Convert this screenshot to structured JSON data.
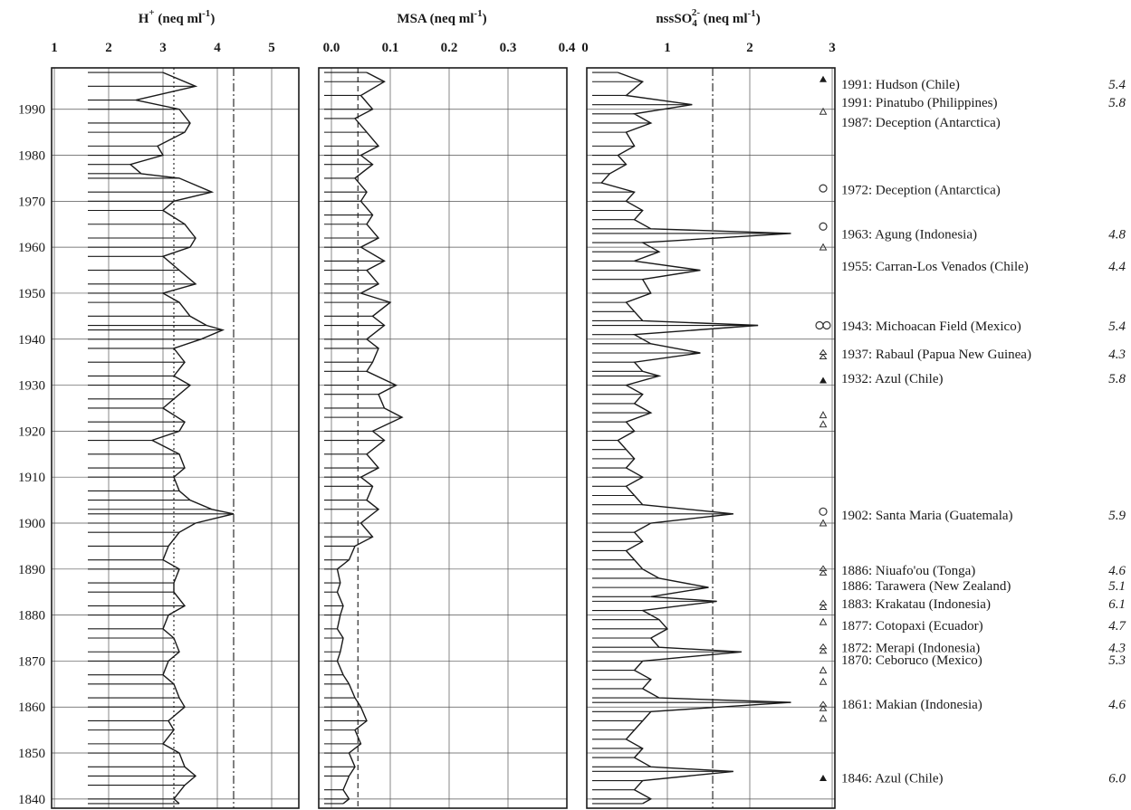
{
  "chart_data": [
    {
      "type": "line",
      "orientation": "vertical-profile",
      "title": "H⁺ (neq ml⁻¹)",
      "title_main": "H",
      "title_sup": "+",
      "title_unit": " (neq ml",
      "title_unit_sup": "-1",
      "title_close": ")",
      "xlim": [
        1,
        5.5
      ],
      "ylim": [
        1838,
        1999
      ],
      "xticks": [
        "1",
        "2",
        "3",
        "4",
        "5"
      ],
      "xtick_values": [
        1,
        2,
        3,
        4,
        5
      ],
      "yticks": [
        "1840",
        "1850",
        "1860",
        "1870",
        "1880",
        "1890",
        "1900",
        "1910",
        "1920",
        "1930",
        "1940",
        "1950",
        "1960",
        "1970",
        "1980",
        "1990"
      ],
      "ytick_values": [
        1840,
        1850,
        1860,
        1870,
        1880,
        1890,
        1900,
        1910,
        1920,
        1930,
        1940,
        1950,
        1960,
        1970,
        1980,
        1990
      ],
      "grid": true,
      "reference_lines": [
        {
          "x": 3.2,
          "style": "dotted"
        },
        {
          "x": 4.3,
          "style": "dash-dot"
        }
      ],
      "series": [
        {
          "y": [
            1998,
            1995,
            1992,
            1990,
            1987,
            1985,
            1982,
            1980,
            1978,
            1976,
            1975,
            1972,
            1970,
            1968,
            1965,
            1962,
            1960,
            1958,
            1955,
            1952,
            1950,
            1948,
            1945,
            1943,
            1942,
            1940,
            1938,
            1935,
            1932,
            1930,
            1927,
            1925,
            1922,
            1920,
            1918,
            1915,
            1912,
            1910,
            1907,
            1905,
            1903,
            1902,
            1900,
            1898,
            1895,
            1892,
            1890,
            1887,
            1885,
            1882,
            1880,
            1877,
            1875,
            1872,
            1870,
            1867,
            1865,
            1862,
            1860,
            1857,
            1855,
            1852,
            1850,
            1847,
            1845,
            1843,
            1840,
            1839
          ],
          "values": [
            3.0,
            3.6,
            2.5,
            3.3,
            3.5,
            3.4,
            2.9,
            3.0,
            2.4,
            2.6,
            3.3,
            3.9,
            3.2,
            3.0,
            3.4,
            3.6,
            3.5,
            3.0,
            3.3,
            3.6,
            3.0,
            3.3,
            3.5,
            3.8,
            4.1,
            3.7,
            3.2,
            3.4,
            3.2,
            3.5,
            3.2,
            3.0,
            3.4,
            3.3,
            2.8,
            3.3,
            3.4,
            3.2,
            3.3,
            3.5,
            3.9,
            4.3,
            3.6,
            3.3,
            3.1,
            3.0,
            3.3,
            3.2,
            3.2,
            3.4,
            3.1,
            3.0,
            3.2,
            3.3,
            3.1,
            3.0,
            3.2,
            3.3,
            3.4,
            3.1,
            3.2,
            3.0,
            3.3,
            3.4,
            3.6,
            3.4,
            3.2,
            3.3
          ]
        }
      ]
    },
    {
      "type": "line",
      "orientation": "vertical-profile",
      "title": "MSA (neq ml⁻¹)",
      "title_main": "MSA",
      "title_sup": "",
      "title_unit": " (neq ml",
      "title_unit_sup": "-1",
      "title_close": ")",
      "xlim": [
        0.0,
        0.4
      ],
      "ylim": [
        1838,
        1999
      ],
      "xticks": [
        "0.0",
        "0.1",
        "0.2",
        "0.3",
        "0.4"
      ],
      "xtick_values": [
        0.0,
        0.1,
        0.2,
        0.3,
        0.4
      ],
      "yticks": [],
      "grid": true,
      "reference_lines": [
        {
          "x": 0.045,
          "style": "dashed"
        }
      ],
      "series": [
        {
          "y": [
            1998,
            1996,
            1993,
            1990,
            1988,
            1985,
            1982,
            1980,
            1978,
            1975,
            1972,
            1970,
            1967,
            1965,
            1962,
            1960,
            1957,
            1955,
            1952,
            1950,
            1948,
            1945,
            1943,
            1940,
            1938,
            1935,
            1933,
            1930,
            1928,
            1925,
            1923,
            1920,
            1918,
            1915,
            1912,
            1910,
            1908,
            1905,
            1903,
            1900,
            1897,
            1895,
            1892,
            1890,
            1887,
            1885,
            1882,
            1880,
            1877,
            1875,
            1872,
            1870,
            1867,
            1865,
            1862,
            1860,
            1857,
            1855,
            1852,
            1850,
            1847,
            1845,
            1842,
            1840,
            1839
          ],
          "values": [
            0.06,
            0.09,
            0.05,
            0.07,
            0.04,
            0.06,
            0.08,
            0.05,
            0.07,
            0.04,
            0.06,
            0.05,
            0.07,
            0.06,
            0.08,
            0.05,
            0.09,
            0.06,
            0.08,
            0.05,
            0.1,
            0.07,
            0.09,
            0.06,
            0.08,
            0.07,
            0.06,
            0.11,
            0.08,
            0.09,
            0.12,
            0.07,
            0.09,
            0.06,
            0.08,
            0.05,
            0.07,
            0.06,
            0.08,
            0.05,
            0.07,
            0.04,
            0.03,
            0.01,
            0.015,
            0.01,
            0.02,
            0.015,
            0.01,
            0.02,
            0.015,
            0.01,
            0.02,
            0.03,
            0.04,
            0.05,
            0.06,
            0.04,
            0.05,
            0.03,
            0.04,
            0.03,
            0.02,
            0.03,
            0.02
          ]
        }
      ]
    },
    {
      "type": "line",
      "orientation": "vertical-profile",
      "title": "nssSO₄²⁻ (neq ml⁻¹)",
      "title_main": "nssSO",
      "title_sub": "4",
      "title_sup": "2-",
      "title_unit": " (neq ml",
      "title_unit_sup": "-1",
      "title_close": ")",
      "xlim": [
        0,
        3
      ],
      "ylim": [
        1838,
        1999
      ],
      "xticks": [
        "0",
        "1",
        "2",
        "3"
      ],
      "xtick_values": [
        0,
        1,
        2,
        3
      ],
      "yticks": [],
      "grid": true,
      "reference_lines": [
        {
          "x": 1.55,
          "style": "dash-dot"
        }
      ],
      "series": [
        {
          "y": [
            1998,
            1996,
            1993,
            1991,
            1989,
            1987,
            1985,
            1982,
            1980,
            1978,
            1976,
            1974,
            1972,
            1970,
            1968,
            1966,
            1964,
            1963,
            1961,
            1959,
            1957,
            1955,
            1953,
            1950,
            1948,
            1946,
            1944,
            1943,
            1941,
            1939,
            1937,
            1935,
            1933,
            1932,
            1930,
            1928,
            1926,
            1924,
            1922,
            1920,
            1918,
            1916,
            1914,
            1912,
            1910,
            1908,
            1906,
            1904,
            1902,
            1900,
            1898,
            1896,
            1894,
            1892,
            1890,
            1888,
            1886,
            1884,
            1883,
            1881,
            1879,
            1877,
            1875,
            1873,
            1872,
            1870,
            1868,
            1866,
            1864,
            1862,
            1861,
            1859,
            1857,
            1855,
            1853,
            1851,
            1849,
            1847,
            1846,
            1844,
            1842,
            1840,
            1839
          ],
          "values": [
            0.4,
            0.7,
            0.5,
            1.3,
            0.6,
            0.8,
            0.5,
            0.6,
            0.4,
            0.5,
            0.3,
            0.2,
            0.6,
            0.5,
            0.7,
            0.6,
            0.8,
            2.5,
            0.7,
            0.9,
            0.6,
            1.4,
            0.7,
            0.8,
            0.5,
            0.6,
            0.7,
            2.1,
            0.6,
            0.8,
            1.4,
            0.6,
            0.7,
            0.9,
            0.5,
            0.7,
            0.6,
            0.8,
            0.5,
            0.6,
            0.4,
            0.5,
            0.6,
            0.5,
            0.7,
            0.5,
            0.6,
            0.7,
            1.8,
            0.8,
            0.6,
            0.7,
            0.5,
            0.6,
            0.7,
            0.9,
            1.5,
            0.8,
            1.6,
            0.7,
            0.9,
            1.0,
            0.8,
            0.9,
            1.9,
            0.7,
            0.6,
            0.8,
            0.7,
            0.9,
            2.5,
            0.8,
            0.7,
            0.6,
            0.5,
            0.7,
            0.6,
            0.8,
            1.8,
            0.7,
            0.6,
            0.8,
            0.7
          ]
        }
      ]
    }
  ],
  "markers": [
    {
      "year": 1996.5,
      "symbol": "filled-triangle"
    },
    {
      "year": 1989.5,
      "symbol": "open-triangle"
    },
    {
      "year": 1972.8,
      "symbol": "open-circle"
    },
    {
      "year": 1964.5,
      "symbol": "open-circle"
    },
    {
      "year": 1960,
      "symbol": "open-triangle"
    },
    {
      "year": 1943,
      "symbol": "double-circle"
    },
    {
      "year": 1936.5,
      "symbol": "stacked-triangle"
    },
    {
      "year": 1931,
      "symbol": "filled-triangle"
    },
    {
      "year": 1923.5,
      "symbol": "open-triangle"
    },
    {
      "year": 1921.5,
      "symbol": "open-triangle"
    },
    {
      "year": 1902.5,
      "symbol": "open-circle"
    },
    {
      "year": 1900,
      "symbol": "open-triangle"
    },
    {
      "year": 1889.5,
      "symbol": "stacked-triangle"
    },
    {
      "year": 1882,
      "symbol": "stacked-triangle"
    },
    {
      "year": 1878.5,
      "symbol": "open-triangle"
    },
    {
      "year": 1872.5,
      "symbol": "stacked-triangle"
    },
    {
      "year": 1868,
      "symbol": "open-triangle"
    },
    {
      "year": 1865.5,
      "symbol": "open-triangle"
    },
    {
      "year": 1860,
      "symbol": "stacked-triangle"
    },
    {
      "year": 1857.5,
      "symbol": "open-triangle"
    },
    {
      "year": 1844.5,
      "symbol": "filled-triangle"
    }
  ],
  "events": [
    {
      "label": "1991: Hudson (Chile)",
      "vei": "5.4",
      "year": 1995.5
    },
    {
      "label": "1991: Pinatubo (Philippines)",
      "vei": "5.8",
      "year": 1991.5
    },
    {
      "label": "1987: Deception (Antarctica)",
      "vei": "",
      "year": 1987.2
    },
    {
      "label": "1972: Deception (Antarctica)",
      "vei": "",
      "year": 1972.5
    },
    {
      "label": "1963: Agung (Indonesia)",
      "vei": "4.8",
      "year": 1962.9
    },
    {
      "label": "1955: Carran-Los Venados (Chile)",
      "vei": "4.4",
      "year": 1955.9
    },
    {
      "label": "1943: Michoacan Field (Mexico)",
      "vei": "5.4",
      "year": 1942.9
    },
    {
      "label": "1937: Rabaul (Papua New Guinea)",
      "vei": "4.3",
      "year": 1936.8
    },
    {
      "label": "1932: Azul (Chile)",
      "vei": "5.8",
      "year": 1931.5
    },
    {
      "label": "1902: Santa Maria (Guatemala)",
      "vei": "5.9",
      "year": 1901.8
    },
    {
      "label": "1886: Niuafo'ou (Tonga)",
      "vei": "4.6",
      "year": 1889.8
    },
    {
      "label": "1886: Tarawera (New Zealand)",
      "vei": "5.1",
      "year": 1886.4
    },
    {
      "label": "1883: Krakatau (Indonesia)",
      "vei": "6.1",
      "year": 1882.5
    },
    {
      "label": "1877: Cotopaxi (Ecuador)",
      "vei": "4.7",
      "year": 1877.8
    },
    {
      "label": "1872: Merapi (Indonesia)",
      "vei": "4.3",
      "year": 1872.9
    },
    {
      "label": "1870: Ceboruco (Mexico)",
      "vei": "5.3",
      "year": 1870.3
    },
    {
      "label": "1861: Makian (Indonesia)",
      "vei": "4.6",
      "year": 1860.6
    },
    {
      "label": "1846: Azul (Chile)",
      "vei": "6.0",
      "year": 1844.6
    }
  ]
}
